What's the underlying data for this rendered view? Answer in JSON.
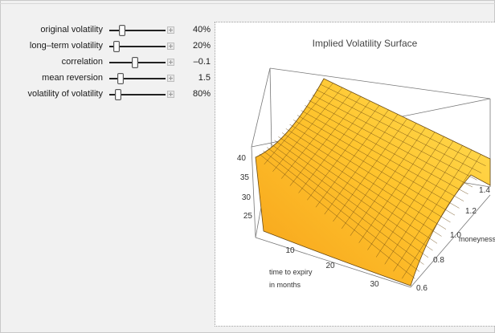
{
  "controls": [
    {
      "label": "original volatility",
      "value": "40%",
      "slider": 0.22
    },
    {
      "label": "long–term volatility",
      "value": "20%",
      "slider": 0.12
    },
    {
      "label": "correlation",
      "value": "–0.1",
      "slider": 0.45
    },
    {
      "label": "mean reversion",
      "value": "1.5",
      "slider": 0.2
    },
    {
      "label": "volatility of volatility",
      "value": "80%",
      "slider": 0.15
    }
  ],
  "chart_data": {
    "type": "surface",
    "title": "Implied Volatility Surface",
    "x_label_lines": [
      "time to expiry",
      "in months"
    ],
    "y_label": "moneyness",
    "x_ticks": [
      "10",
      "20",
      "30"
    ],
    "y_ticks": [
      "0.6",
      "0.8",
      "1.0",
      "1.2",
      "1.4"
    ],
    "z_ticks": [
      "25",
      "30",
      "35",
      "40"
    ],
    "colors": {
      "surface_light": "#ffd54a",
      "surface_dark": "#f2a81f",
      "mesh": "#6b4a12",
      "box": "#666666"
    }
  }
}
